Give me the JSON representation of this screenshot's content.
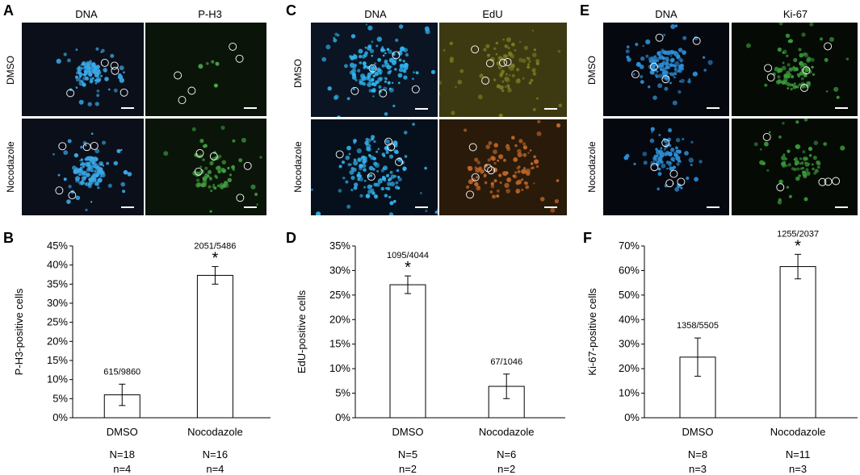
{
  "panel_labels": [
    "A",
    "B",
    "C",
    "D",
    "E",
    "F"
  ],
  "micro": [
    {
      "letter": "A",
      "col_labels": [
        "DNA",
        "P-H3"
      ],
      "row_labels": [
        "DMSO",
        "Nocodazole"
      ]
    },
    {
      "letter": "C",
      "col_labels": [
        "DNA",
        "EdU"
      ],
      "row_labels": [
        "DMSO",
        "Nocodazole"
      ]
    },
    {
      "letter": "E",
      "col_labels": [
        "DNA",
        "Ki-67"
      ],
      "row_labels": [
        "DMSO",
        "Nocodazole"
      ]
    }
  ],
  "chart_data": [
    {
      "type": "bar",
      "panel": "B",
      "ylabel": "P-H3-positive cells",
      "categories": [
        "DMSO",
        "Nocodazole"
      ],
      "values": [
        6,
        37.3
      ],
      "errors": [
        2.8,
        2.3
      ],
      "annotations": [
        "615/9860",
        "2051/5486"
      ],
      "significance": [
        "",
        "*"
      ],
      "N": [
        "N=18",
        "N=16"
      ],
      "n": [
        "n=4",
        "n=4"
      ],
      "ylim": [
        0,
        45
      ],
      "yticks": [
        "0%",
        "5%",
        "10%",
        "15%",
        "20%",
        "25%",
        "30%",
        "35%",
        "40%",
        "45%"
      ],
      "ytick_values": [
        0,
        5,
        10,
        15,
        20,
        25,
        30,
        35,
        40,
        45
      ]
    },
    {
      "type": "bar",
      "panel": "D",
      "ylabel": "EdU-positive cells",
      "categories": [
        "DMSO",
        "Nocodazole"
      ],
      "values": [
        27.1,
        6.4
      ],
      "errors": [
        1.8,
        2.5
      ],
      "annotations": [
        "1095/4044",
        "67/1046"
      ],
      "significance": [
        "*",
        ""
      ],
      "N": [
        "N=5",
        "N=6"
      ],
      "n": [
        "n=2",
        "n=2"
      ],
      "ylim": [
        0,
        35
      ],
      "yticks": [
        "0%",
        "5%",
        "10%",
        "15%",
        "20%",
        "25%",
        "30%",
        "35%"
      ],
      "ytick_values": [
        0,
        5,
        10,
        15,
        20,
        25,
        30,
        35
      ]
    },
    {
      "type": "bar",
      "panel": "F",
      "ylabel": "Ki-67-positive cells",
      "categories": [
        "DMSO",
        "Nocodazole"
      ],
      "values": [
        24.7,
        61.6
      ],
      "errors": [
        7.8,
        5.0
      ],
      "annotations": [
        "1358/5505",
        "1255/2037"
      ],
      "significance": [
        "",
        "*"
      ],
      "N": [
        "N=8",
        "N=11"
      ],
      "n": [
        "n=3",
        "n=3"
      ],
      "ylim": [
        0,
        70
      ],
      "yticks": [
        "0%",
        "10%",
        "20%",
        "30%",
        "40%",
        "50%",
        "60%",
        "70%"
      ],
      "ytick_values": [
        0,
        10,
        20,
        30,
        40,
        50,
        60,
        70
      ]
    }
  ]
}
